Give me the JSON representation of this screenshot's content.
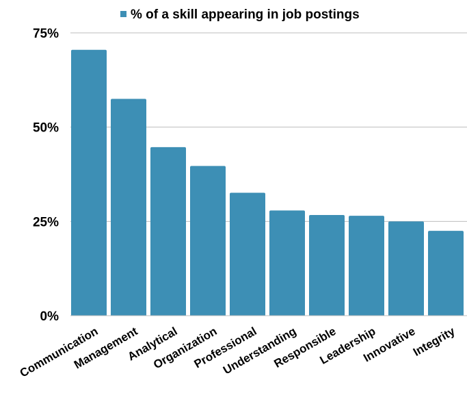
{
  "chart_data": {
    "type": "bar",
    "categories": [
      "Communication",
      "Management",
      "Analytical",
      "Organization",
      "Professional",
      "Understanding",
      "Responsible",
      "Leadership",
      "Innovative",
      "Integrity"
    ],
    "series": [
      {
        "name": "% of a skill appearing in job postings",
        "values": [
          70.5,
          57.5,
          44.7,
          39.7,
          32.6,
          27.9,
          26.7,
          26.5,
          25.0,
          22.5
        ],
        "color": "#3d8fb5"
      }
    ],
    "yticks": [
      "0%",
      "25%",
      "50%",
      "75%"
    ],
    "ytick_values": [
      0,
      25,
      50,
      75
    ],
    "ylim": [
      0,
      75
    ],
    "grid": true,
    "legend_position": "top"
  }
}
